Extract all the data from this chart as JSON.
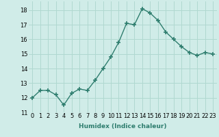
{
  "x": [
    0,
    1,
    2,
    3,
    4,
    5,
    6,
    7,
    8,
    9,
    10,
    11,
    12,
    13,
    14,
    15,
    16,
    17,
    18,
    19,
    20,
    21,
    22,
    23
  ],
  "y": [
    12.0,
    12.5,
    12.5,
    12.2,
    11.5,
    12.3,
    12.6,
    12.5,
    13.2,
    14.0,
    14.8,
    15.8,
    17.1,
    17.0,
    18.1,
    17.8,
    17.3,
    16.5,
    16.0,
    15.5,
    15.1,
    14.9,
    15.1,
    15.0
  ],
  "line_color": "#2e7d6e",
  "marker": "+",
  "marker_size": 4,
  "marker_lw": 1.2,
  "line_width": 1.0,
  "bg_color": "#d0ece8",
  "grid_color": "#b0d8d0",
  "xlabel": "Humidex (Indice chaleur)",
  "xlim": [
    -0.5,
    23.5
  ],
  "ylim": [
    11,
    18.6
  ],
  "yticks": [
    11,
    12,
    13,
    14,
    15,
    16,
    17,
    18
  ],
  "xticks": [
    0,
    1,
    2,
    3,
    4,
    5,
    6,
    7,
    8,
    9,
    10,
    11,
    12,
    13,
    14,
    15,
    16,
    17,
    18,
    19,
    20,
    21,
    22,
    23
  ],
  "xlabel_fontsize": 6.5,
  "tick_fontsize": 6.0
}
